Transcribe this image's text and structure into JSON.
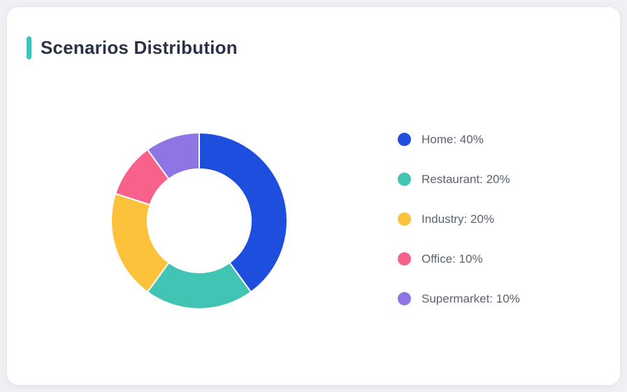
{
  "card": {
    "title": "Scenarios Distribution",
    "accent_color": "#3ec6ba",
    "background": "#ffffff",
    "page_background": "#f0f1f4"
  },
  "chart_data": {
    "type": "pie",
    "subtype": "donut",
    "title": "Scenarios Distribution",
    "legend_position": "right",
    "start_angle_deg": 0,
    "direction": "clockwise",
    "outer_radius_px": 126,
    "inner_radius_px": 74,
    "slice_gap_color": "#ffffff",
    "categories": [
      "Home",
      "Restaurant",
      "Industry",
      "Office",
      "Supermarket"
    ],
    "values": [
      40,
      20,
      20,
      10,
      10
    ],
    "unit": "%",
    "slices": [
      {
        "label": "Home",
        "value": 40,
        "color": "#1d4edd",
        "legend_label": "Home: 40%"
      },
      {
        "label": "Restaurant",
        "value": 20,
        "color": "#41c4b4",
        "legend_label": "Restaurant: 20%"
      },
      {
        "label": "Industry",
        "value": 20,
        "color": "#fdc23c",
        "legend_label": "Industry: 20%"
      },
      {
        "label": "Office",
        "value": 10,
        "color": "#f8618a",
        "legend_label": "Office: 10%"
      },
      {
        "label": "Supermarket",
        "value": 10,
        "color": "#8f74e4",
        "legend_label": "Supermarket: 10%"
      }
    ]
  }
}
